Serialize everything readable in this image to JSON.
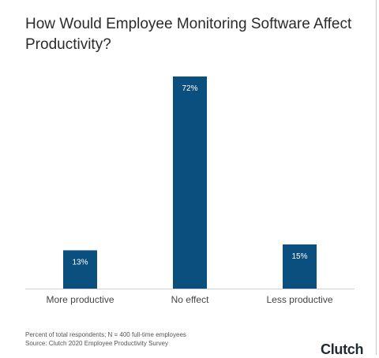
{
  "title": "How Would Employee Monitoring Software Affect Productivity?",
  "chart_data": {
    "type": "bar",
    "categories": [
      "More productive",
      "No effect",
      "Less productive"
    ],
    "values": [
      13,
      72,
      15
    ],
    "data_labels": [
      "13%",
      "72%",
      "15%"
    ],
    "ylim": [
      0,
      72
    ],
    "grid": false,
    "legend": "none",
    "bar_color": "#0b4f7e"
  },
  "footnote": {
    "line1": "Percent of total respondents; N = 400 full-time employees",
    "line2": "Source: Clutch 2020 Employee Productivity Survey"
  },
  "logo": "Clutch"
}
